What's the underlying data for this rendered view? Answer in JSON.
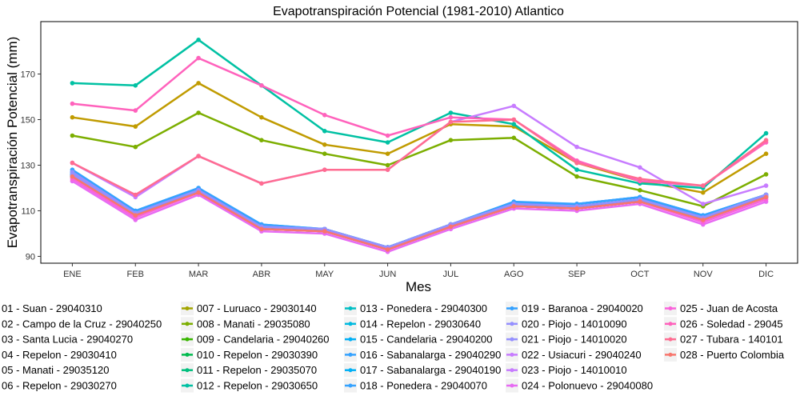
{
  "chart_data": {
    "type": "line",
    "title": "Evapotranspiración Potencial (1981-2010)  Atlantico",
    "xlabel": "Mes",
    "ylabel": "Evapotranspiración Potencial  (mm)",
    "categories": [
      "ENE",
      "FEB",
      "MAR",
      "ABR",
      "MAY",
      "JUN",
      "JUL",
      "AGO",
      "SEP",
      "OCT",
      "NOV",
      "DIC"
    ],
    "ylim": [
      87,
      193
    ],
    "yticks": [
      90,
      110,
      130,
      150,
      170
    ],
    "grid": false,
    "legend_position": "bottom",
    "series": [
      {
        "name": "01 - Suan - 29040310",
        "color": "#F8766D",
        "values": [
          125,
          108,
          118,
          102,
          101,
          93,
          103,
          112,
          111,
          114,
          106,
          116
        ]
      },
      {
        "name": "02 - Campo de la Cruz - 29040250",
        "color": "#EA8331",
        "values": [
          126,
          109,
          119,
          103,
          102,
          93,
          104,
          113,
          112,
          115,
          107,
          117
        ]
      },
      {
        "name": "03 - Santa Lucia - 29040270",
        "color": "#D89000",
        "values": [
          126,
          109,
          119,
          103,
          102,
          94,
          104,
          113,
          112,
          115,
          107,
          117
        ]
      },
      {
        "name": "04 - Repelon - 29030410",
        "color": "#C09B00",
        "values": [
          151,
          147,
          166,
          151,
          139,
          135,
          148,
          147,
          131,
          123,
          118,
          135
        ]
      },
      {
        "name": "05 - Manati - 29035120",
        "color": "#A3A500",
        "values": [
          125,
          108,
          118,
          102,
          101,
          93,
          103,
          112,
          111,
          114,
          106,
          116
        ]
      },
      {
        "name": "06 - Repelon - 29030270",
        "color": "#7CAE00",
        "values": [
          126,
          109,
          119,
          103,
          102,
          93,
          104,
          113,
          112,
          115,
          107,
          117
        ]
      },
      {
        "name": "007 - Luruaco - 29030140",
        "color": "#A3A500",
        "values": [
          126,
          109,
          119,
          103,
          102,
          94,
          104,
          113,
          112,
          115,
          107,
          117
        ]
      },
      {
        "name": "008 - Manati - 29035080",
        "color": "#7CAE00",
        "values": [
          143,
          138,
          153,
          141,
          135,
          130,
          141,
          142,
          125,
          119,
          112,
          126
        ]
      },
      {
        "name": "009 - Candelaria - 29040260",
        "color": "#39B600",
        "values": [
          125,
          108,
          118,
          102,
          101,
          93,
          103,
          112,
          111,
          114,
          106,
          116
        ]
      },
      {
        "name": "010 - Repelon - 29030390",
        "color": "#00BB4E",
        "values": [
          126,
          109,
          119,
          103,
          102,
          93,
          104,
          113,
          112,
          115,
          107,
          117
        ]
      },
      {
        "name": "011 - Repelon - 29035070",
        "color": "#00BF7D",
        "values": [
          126,
          109,
          119,
          103,
          102,
          94,
          104,
          113,
          112,
          115,
          107,
          117
        ]
      },
      {
        "name": "012 - Repelon - 29030650",
        "color": "#00C1A3",
        "values": [
          166,
          165,
          185,
          165,
          145,
          140,
          153,
          148,
          128,
          122,
          120,
          144
        ]
      },
      {
        "name": "013 - Ponedera - 29040300",
        "color": "#00BFC4",
        "values": [
          125,
          108,
          118,
          102,
          101,
          93,
          103,
          112,
          111,
          114,
          106,
          116
        ]
      },
      {
        "name": "014 - Repelon - 29030640",
        "color": "#00BAE0",
        "values": [
          126,
          109,
          119,
          103,
          102,
          93,
          104,
          113,
          112,
          115,
          107,
          117
        ]
      },
      {
        "name": "015 - Candelaria - 29040200",
        "color": "#00B0F6",
        "values": [
          126,
          109,
          119,
          103,
          102,
          94,
          104,
          113,
          112,
          115,
          107,
          117
        ]
      },
      {
        "name": "016 - Sabanalarga - 29040290",
        "color": "#35A2FF",
        "values": [
          127,
          110,
          120,
          104,
          102,
          94,
          104,
          113,
          113,
          116,
          108,
          117
        ]
      },
      {
        "name": "017 - Sabanalarga - 29040190",
        "color": "#00B0F6",
        "values": [
          126,
          109,
          119,
          103,
          102,
          94,
          104,
          113,
          112,
          115,
          107,
          117
        ]
      },
      {
        "name": "018 - Ponedera - 29040070",
        "color": "#35A2FF",
        "values": [
          127,
          109,
          119,
          103,
          102,
          94,
          104,
          113,
          113,
          116,
          108,
          117
        ]
      },
      {
        "name": "019 - Baranoa - 29040020",
        "color": "#35A2FF",
        "values": [
          128,
          110,
          120,
          104,
          102,
          94,
          104,
          114,
          113,
          116,
          108,
          117
        ]
      },
      {
        "name": "020 - Piojo - 14010090",
        "color": "#9590FF",
        "values": [
          127,
          109,
          119,
          103,
          102,
          94,
          104,
          113,
          112,
          115,
          107,
          117
        ]
      },
      {
        "name": "021 - Piojo - 14010020",
        "color": "#9590FF",
        "values": [
          126,
          109,
          119,
          103,
          102,
          93,
          104,
          113,
          112,
          115,
          107,
          117
        ]
      },
      {
        "name": "022 - Usiacuri - 29040240",
        "color": "#C77CFF",
        "values": [
          131,
          116,
          134,
          122,
          128,
          128,
          149,
          156,
          138,
          129,
          113,
          121
        ]
      },
      {
        "name": "023 - Piojo - 14010010",
        "color": "#C77CFF",
        "values": [
          125,
          108,
          118,
          102,
          101,
          93,
          103,
          112,
          111,
          114,
          106,
          116
        ]
      },
      {
        "name": "024 - Polonuevo - 29040080",
        "color": "#E76BF3",
        "values": [
          123,
          106,
          117,
          101,
          100,
          92,
          102,
          111,
          110,
          113,
          104,
          114
        ]
      },
      {
        "name": "025 - Juan de Acosta",
        "color": "#FA62DB",
        "values": [
          124,
          107,
          118,
          102,
          101,
          93,
          103,
          112,
          111,
          114,
          105,
          115
        ]
      },
      {
        "name": "026 - Soledad - 29045",
        "color": "#FF62BC",
        "values": [
          157,
          154,
          177,
          165,
          152,
          143,
          151,
          150,
          132,
          123,
          121,
          140
        ]
      },
      {
        "name": "027 - Tubara - 140101",
        "color": "#FF6C91",
        "values": [
          131,
          117,
          134,
          122,
          128,
          128,
          149,
          150,
          131,
          124,
          121,
          141
        ]
      },
      {
        "name": "028 - Puerto Colombia",
        "color": "#F8766D",
        "values": [
          125,
          108,
          118,
          102,
          101,
          93,
          103,
          112,
          111,
          114,
          106,
          116
        ]
      }
    ]
  }
}
